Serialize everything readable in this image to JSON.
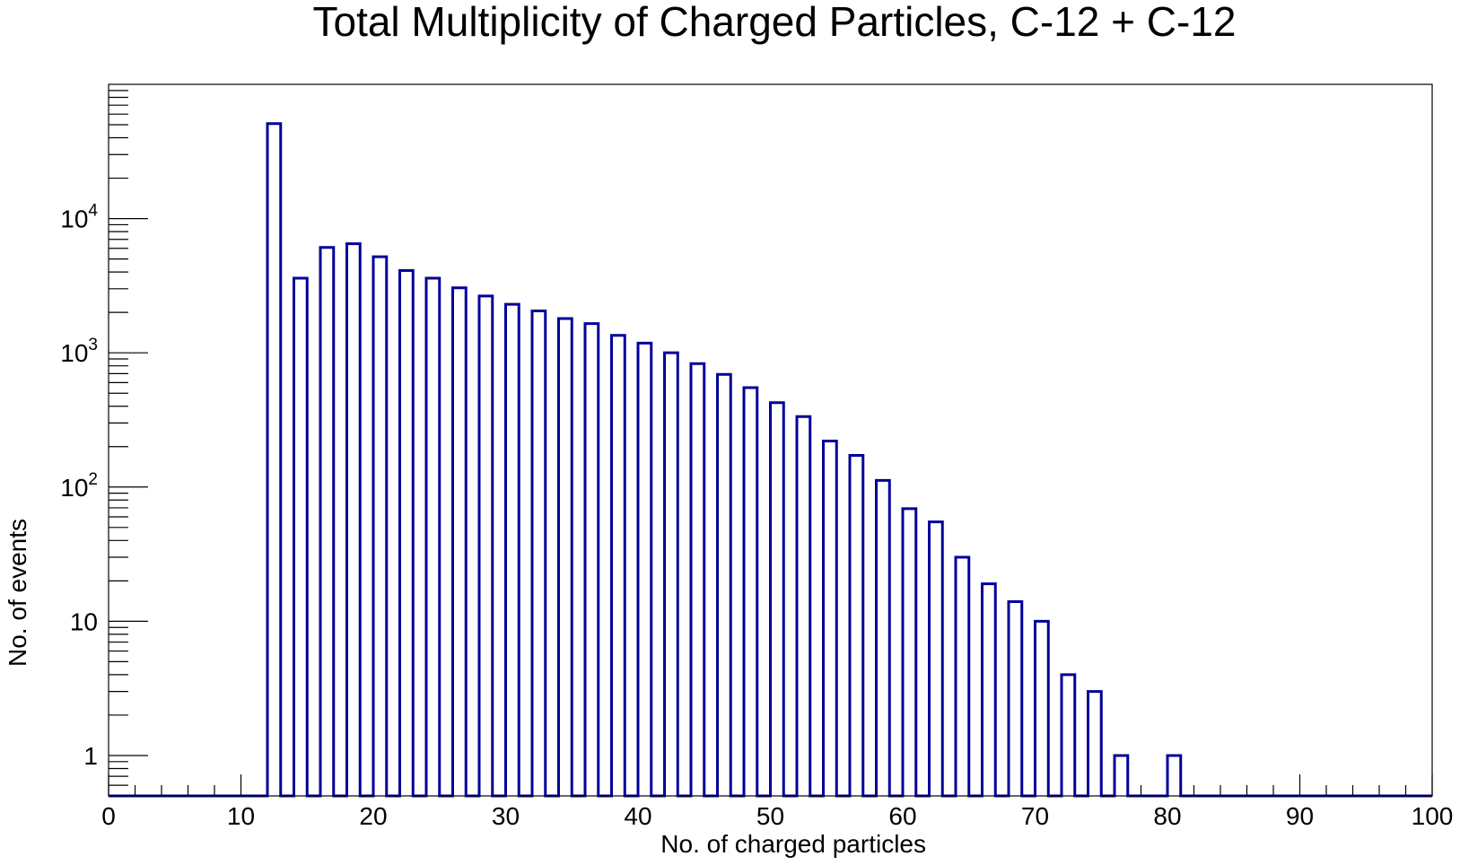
{
  "chart_data": {
    "type": "bar",
    "title": "Total Multiplicity of Charged Particles, C-12 + C-12",
    "xlabel": "No. of charged particles",
    "ylabel": "No. of events",
    "xlim": [
      0,
      100
    ],
    "ylim": [
      0.5,
      100000
    ],
    "yscale": "log",
    "bin_width": 1,
    "grid": false,
    "legend": "none",
    "x_ticks": [
      "0",
      "10",
      "20",
      "30",
      "40",
      "50",
      "60",
      "70",
      "80",
      "90",
      "100"
    ],
    "y_ticks": [
      {
        "value": 1,
        "mantissa": "1",
        "exp": ""
      },
      {
        "value": 10,
        "mantissa": "10",
        "exp": ""
      },
      {
        "value": 100,
        "mantissa": "10",
        "exp": "2"
      },
      {
        "value": 1000,
        "mantissa": "10",
        "exp": "3"
      },
      {
        "value": 10000,
        "mantissa": "10",
        "exp": "4"
      }
    ],
    "bins": [
      {
        "x": 12,
        "value": 51000
      },
      {
        "x": 14,
        "value": 3600
      },
      {
        "x": 16,
        "value": 6100
      },
      {
        "x": 18,
        "value": 6500
      },
      {
        "x": 20,
        "value": 5200
      },
      {
        "x": 22,
        "value": 4100
      },
      {
        "x": 24,
        "value": 3600
      },
      {
        "x": 26,
        "value": 3050
      },
      {
        "x": 28,
        "value": 2650
      },
      {
        "x": 30,
        "value": 2300
      },
      {
        "x": 32,
        "value": 2050
      },
      {
        "x": 34,
        "value": 1800
      },
      {
        "x": 36,
        "value": 1650
      },
      {
        "x": 38,
        "value": 1350
      },
      {
        "x": 40,
        "value": 1180
      },
      {
        "x": 42,
        "value": 1000
      },
      {
        "x": 44,
        "value": 830
      },
      {
        "x": 46,
        "value": 690
      },
      {
        "x": 48,
        "value": 550
      },
      {
        "x": 50,
        "value": 425
      },
      {
        "x": 52,
        "value": 335
      },
      {
        "x": 54,
        "value": 220
      },
      {
        "x": 56,
        "value": 172
      },
      {
        "x": 58,
        "value": 112
      },
      {
        "x": 60,
        "value": 69
      },
      {
        "x": 62,
        "value": 55
      },
      {
        "x": 64,
        "value": 30
      },
      {
        "x": 66,
        "value": 19
      },
      {
        "x": 68,
        "value": 14
      },
      {
        "x": 70,
        "value": 10
      },
      {
        "x": 72,
        "value": 4
      },
      {
        "x": 74,
        "value": 3
      },
      {
        "x": 76,
        "value": 1
      },
      {
        "x": 80,
        "value": 1
      }
    ],
    "colors": {
      "line": "#000099",
      "axis": "#000000",
      "background": "#ffffff"
    }
  }
}
